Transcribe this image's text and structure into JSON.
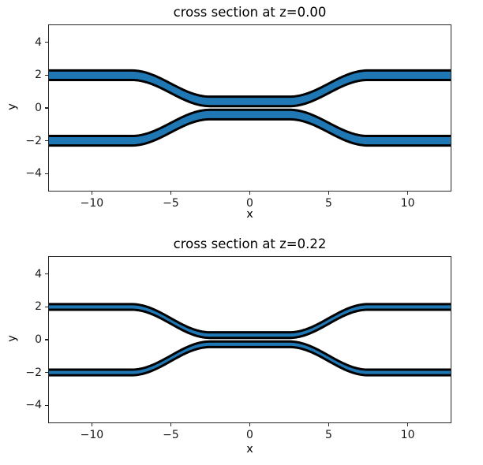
{
  "figure": {
    "background": "#ffffff",
    "description": "matplotlib-style figure with two stacked subplots of a directional-coupler waveguide cross section"
  },
  "colors": {
    "waveguide_fill": "#1f77b4",
    "waveguide_edge": "#000000",
    "spine": "#262626",
    "tick": "#262626",
    "text": "#000000"
  },
  "chart_data": [
    {
      "type": "area",
      "title": "cross section at z=0.00",
      "xlabel": "x",
      "ylabel": "y",
      "xlim": [
        -12.72,
        12.72
      ],
      "ylim": [
        -5.05,
        5.05
      ],
      "xticks": [
        -10,
        -5,
        0,
        5,
        10
      ],
      "yticks": [
        -4,
        -2,
        0,
        2,
        4
      ],
      "grid": false,
      "legend": null,
      "z_value": 0.0,
      "geometry": {
        "description": "two mirrored waveguide strips (coupler): straight at y=±2 for |x|>=7.5, cosine S-bend to y=±0.40 for |x|<=2.5",
        "waveguide_half_width": 0.29,
        "edge_stroke_px": 3,
        "y_outer": 2.0,
        "y_inner": 0.4,
        "straight_half_length": 2.5,
        "bend_end": 7.5,
        "top_centerline_keypoints": [
          [
            -12.72,
            2.0
          ],
          [
            -7.5,
            2.0
          ],
          [
            -2.5,
            0.4
          ],
          [
            2.5,
            0.4
          ],
          [
            7.5,
            2.0
          ],
          [
            12.72,
            2.0
          ]
        ],
        "bottom_waveguide": "mirror of top about y=0"
      }
    },
    {
      "type": "area",
      "title": "cross section at z=0.22",
      "xlabel": "x",
      "ylabel": "y",
      "xlim": [
        -12.72,
        12.72
      ],
      "ylim": [
        -5.05,
        5.05
      ],
      "xticks": [
        -10,
        -5,
        0,
        5,
        10
      ],
      "yticks": [
        -4,
        -2,
        0,
        2,
        4
      ],
      "grid": false,
      "legend": null,
      "z_value": 0.22,
      "geometry": {
        "description": "same coupler sliced higher: thinner strips, straight at y=±2 for |x|>=7.5, cosine S-bend to y=±0.28 for |x|<=2.5",
        "waveguide_half_width": 0.17,
        "edge_stroke_px": 3,
        "y_outer": 2.0,
        "y_inner": 0.28,
        "straight_half_length": 2.5,
        "bend_end": 7.5,
        "top_centerline_keypoints": [
          [
            -12.72,
            2.0
          ],
          [
            -7.5,
            2.0
          ],
          [
            -2.5,
            0.28
          ],
          [
            2.5,
            0.28
          ],
          [
            7.5,
            2.0
          ],
          [
            12.72,
            2.0
          ]
        ],
        "bottom_waveguide": "mirror of top about y=0"
      }
    }
  ]
}
